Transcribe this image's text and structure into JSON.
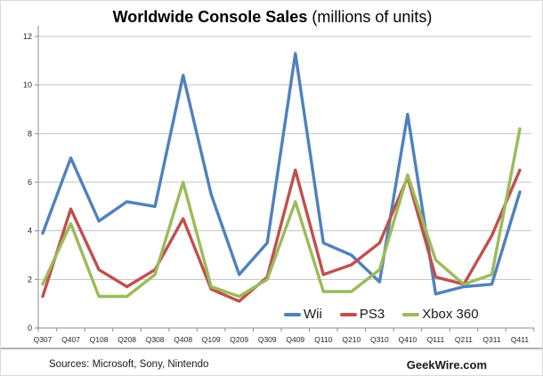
{
  "title": {
    "bold": "Worldwide Console Sales",
    "regular": " (millions of units)"
  },
  "chart_data": {
    "type": "line",
    "title": "Worldwide Console Sales (millions of units)",
    "xlabel": "",
    "ylabel": "",
    "ylim": [
      0,
      12
    ],
    "ytick_step": 2,
    "grid": true,
    "legend_position": "bottom-right-inside",
    "categories": [
      "Q307",
      "Q407",
      "Q108",
      "Q208",
      "Q308",
      "Q408",
      "Q109",
      "Q209",
      "Q309",
      "Q409",
      "Q110",
      "Q210",
      "Q310",
      "Q410",
      "Q111",
      "Q211",
      "Q311",
      "Q411"
    ],
    "series": [
      {
        "name": "Wii",
        "color": "#4F81BD",
        "values": [
          3.9,
          7.0,
          4.4,
          5.2,
          5.0,
          10.4,
          5.5,
          2.2,
          3.5,
          11.3,
          3.5,
          3.0,
          1.9,
          8.8,
          1.4,
          1.7,
          1.8,
          5.6
        ]
      },
      {
        "name": "PS3",
        "color": "#C0504D",
        "values": [
          1.3,
          4.9,
          2.4,
          1.7,
          2.4,
          4.5,
          1.6,
          1.1,
          2.1,
          6.5,
          2.2,
          2.6,
          3.5,
          6.2,
          2.1,
          1.8,
          3.8,
          6.5
        ]
      },
      {
        "name": "Xbox 360",
        "color": "#9BBB59",
        "values": [
          1.8,
          4.3,
          1.3,
          1.3,
          2.2,
          6.0,
          1.7,
          1.3,
          2.0,
          5.2,
          1.5,
          1.5,
          2.4,
          6.3,
          2.8,
          1.8,
          2.2,
          8.2
        ]
      }
    ],
    "colors": {
      "grid": "#C3C3C3",
      "axis": "#8C8C8C",
      "tick_text": "#262626"
    }
  },
  "footer": {
    "sources": "Sources: Microsoft, Sony, Nintendo",
    "brand": "GeekWire.com"
  }
}
